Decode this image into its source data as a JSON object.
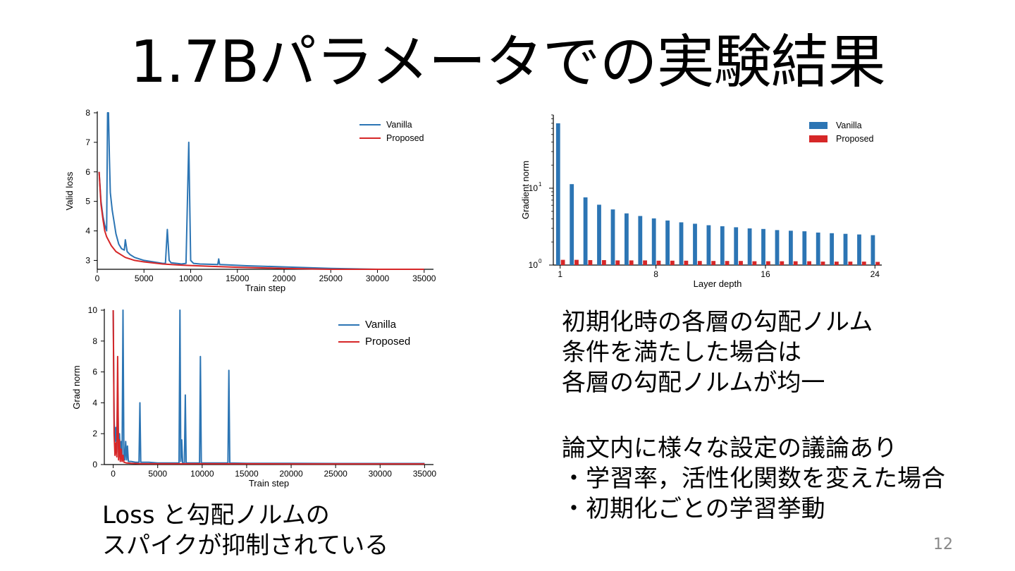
{
  "slide": {
    "title": "1.7Bパラメータでの実験結果",
    "caption_left": [
      "Loss と勾配ノルムの",
      "スパイクが抑制されている"
    ],
    "text_right_1": [
      "初期化時の各層の勾配ノルム",
      "条件を満たした場合は",
      "各層の勾配ノルムが均一"
    ],
    "text_right_2": [
      "論文内に様々な設定の議論あり",
      "・学習率，活性化関数を変えた場合",
      "・初期化ごとの学習挙動"
    ],
    "page_number": "12"
  },
  "colors": {
    "vanilla": "#2c75b4",
    "proposed": "#d62728"
  },
  "chart_data": [
    {
      "type": "line",
      "xlabel": "Train step",
      "ylabel": "Valid loss",
      "xlim": [
        0,
        36000
      ],
      "ylim": [
        2.7,
        8
      ],
      "xticks": [
        0,
        5000,
        10000,
        15000,
        20000,
        25000,
        30000,
        35000
      ],
      "yticks": [
        3,
        4,
        5,
        6,
        7,
        8
      ],
      "grid": false,
      "legend": "top-right",
      "series": [
        {
          "name": "Vanilla",
          "x": [
            200,
            400,
            600,
            800,
            1000,
            1100,
            1200,
            1300,
            1400,
            1600,
            1800,
            2000,
            2300,
            2600,
            2900,
            3000,
            3200,
            3500,
            4000,
            5000,
            6000,
            7000,
            7300,
            7500,
            7700,
            7900,
            8500,
            9000,
            9500,
            9800,
            10000,
            10300,
            11000,
            12000,
            12900,
            13000,
            13100,
            14000,
            16000,
            20000,
            25000,
            30000,
            35000
          ],
          "y": [
            6.0,
            5.0,
            4.5,
            4.2,
            4.0,
            8.0,
            8.0,
            6.5,
            5.3,
            4.7,
            4.3,
            3.9,
            3.55,
            3.4,
            3.35,
            3.7,
            3.3,
            3.2,
            3.1,
            3.0,
            2.95,
            2.9,
            2.9,
            4.05,
            3.0,
            2.92,
            2.9,
            2.88,
            2.9,
            7.0,
            3.0,
            2.9,
            2.88,
            2.87,
            2.86,
            3.05,
            2.86,
            2.85,
            2.82,
            2.78,
            2.73,
            2.7,
            2.67
          ]
        },
        {
          "name": "Proposed",
          "x": [
            200,
            400,
            600,
            800,
            1000,
            1500,
            2000,
            3000,
            4000,
            5000,
            7000,
            9000,
            12000,
            15000,
            20000,
            25000,
            30000,
            35000
          ],
          "y": [
            6.0,
            4.9,
            4.4,
            4.0,
            3.8,
            3.5,
            3.3,
            3.1,
            3.0,
            2.95,
            2.88,
            2.84,
            2.8,
            2.77,
            2.73,
            2.7,
            2.67,
            2.64
          ]
        }
      ]
    },
    {
      "type": "line",
      "xlabel": "Train step",
      "ylabel": "Grad norm",
      "xlim": [
        -1000,
        36000
      ],
      "ylim": [
        0,
        10
      ],
      "xticks": [
        0,
        5000,
        10000,
        15000,
        20000,
        25000,
        30000,
        35000
      ],
      "yticks": [
        0,
        2,
        4,
        6,
        8,
        10
      ],
      "grid": false,
      "legend": "top-right",
      "series": [
        {
          "name": "Vanilla",
          "x": [
            0,
            100,
            200,
            300,
            400,
            500,
            600,
            700,
            800,
            900,
            1000,
            1100,
            1200,
            1300,
            1400,
            1500,
            1600,
            1700,
            1800,
            2000,
            2500,
            2900,
            3000,
            3100,
            4000,
            5000,
            6000,
            7000,
            7400,
            7500,
            7600,
            7700,
            7800,
            7900,
            8000,
            8100,
            8200,
            8300,
            9000,
            9700,
            9800,
            9900,
            11000,
            12000,
            12900,
            13000,
            13100,
            15000,
            20000,
            25000,
            30000,
            35000
          ],
          "y": [
            10,
            3.0,
            1.5,
            2.4,
            0.8,
            5.0,
            1.0,
            2.0,
            0.6,
            1.5,
            0.4,
            10,
            0.3,
            0.3,
            1.5,
            0.3,
            1.2,
            0.2,
            0.2,
            0.2,
            0.15,
            0.15,
            4.0,
            0.15,
            0.15,
            0.1,
            0.1,
            0.1,
            0.1,
            10,
            0.2,
            1.6,
            0.1,
            0.1,
            0.1,
            4.5,
            0.1,
            0.1,
            0.1,
            0.1,
            7.0,
            0.1,
            0.1,
            0.1,
            0.1,
            6.1,
            0.1,
            0.08,
            0.08,
            0.07,
            0.07,
            0.07
          ]
        },
        {
          "name": "Proposed",
          "x": [
            0,
            100,
            200,
            300,
            400,
            500,
            600,
            700,
            800,
            900,
            1000,
            1100,
            1200,
            1500,
            2000,
            3000,
            5000,
            10000,
            20000,
            30000,
            35000
          ],
          "y": [
            10,
            2.0,
            0.6,
            1.4,
            0.5,
            7.0,
            0.3,
            1.6,
            0.2,
            1.0,
            0.2,
            0.6,
            0.15,
            0.1,
            0.08,
            0.06,
            0.05,
            0.05,
            0.04,
            0.04,
            0.04
          ]
        }
      ]
    },
    {
      "type": "bar",
      "xlabel": "Layer depth",
      "ylabel": "Gradient norm",
      "yscale": "log",
      "ylim": [
        1,
        90
      ],
      "xticks": [
        1,
        8,
        16,
        24
      ],
      "yticklabels": [
        "10",
        "10"
      ],
      "yticksuperscripts": [
        "0",
        "1"
      ],
      "grid": false,
      "legend": "top-right",
      "categories": [
        1,
        2,
        3,
        4,
        5,
        6,
        7,
        8,
        9,
        10,
        11,
        12,
        13,
        14,
        15,
        16,
        17,
        18,
        19,
        20,
        21,
        22,
        23,
        24
      ],
      "series": [
        {
          "name": "Vanilla",
          "values": [
            70,
            11.3,
            7.6,
            6.1,
            5.3,
            4.7,
            4.35,
            4.05,
            3.8,
            3.6,
            3.45,
            3.3,
            3.2,
            3.1,
            3.0,
            2.95,
            2.85,
            2.8,
            2.75,
            2.65,
            2.6,
            2.55,
            2.5,
            2.45
          ]
        },
        {
          "name": "Proposed",
          "values": [
            1.17,
            1.17,
            1.16,
            1.16,
            1.15,
            1.15,
            1.15,
            1.14,
            1.14,
            1.14,
            1.13,
            1.13,
            1.13,
            1.13,
            1.12,
            1.12,
            1.12,
            1.12,
            1.12,
            1.11,
            1.11,
            1.11,
            1.11,
            1.1
          ]
        }
      ]
    }
  ]
}
